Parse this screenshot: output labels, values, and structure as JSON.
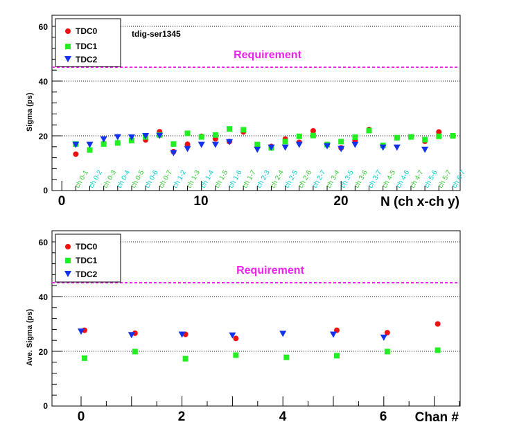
{
  "chart_data": [
    {
      "type": "scatter",
      "title": "",
      "xlabel": "N (ch x-ch y)",
      "ylabel": "Sigma (ps)",
      "xlim": [
        -0.5,
        28.5
      ],
      "ylim": [
        0,
        60
      ],
      "x_ticks": [
        0,
        10,
        20
      ],
      "y_ticks": [
        0,
        20,
        40,
        60
      ],
      "grid": "horizontal dotted at major y ticks",
      "legend_position": "top-left",
      "annotations": [
        "tdig-ser1345"
      ],
      "reference_line": {
        "label": "Requirement",
        "value": 45,
        "color": "#ee22ee"
      },
      "category_labels": [
        "ch 0-1",
        "ch 0-2",
        "ch 0-3",
        "ch 0-4",
        "ch 0-5",
        "ch 0-6",
        "ch 0-7",
        "ch 1-2",
        "ch 1-3",
        "ch 1-4",
        "ch 1-5",
        "ch 1-6",
        "ch 1-7",
        "ch 2-3",
        "ch 2-4",
        "ch 2-5",
        "ch 2-6",
        "ch 2-7",
        "ch 3-4",
        "ch 3-5",
        "ch 3-6",
        "ch 3-7",
        "ch 4-5",
        "ch 4-6",
        "ch 4-7",
        "ch 5-6",
        "ch 5-7",
        "ch 6-7"
      ],
      "category_label_colors": [
        "#33cc33",
        "#00cccc"
      ],
      "series": [
        {
          "name": "TDC0",
          "color": "#ee1111",
          "marker": "circle",
          "x": [
            1,
            2,
            3,
            4,
            5,
            6,
            7,
            8,
            9,
            10,
            11,
            12,
            13,
            14,
            15,
            16,
            17,
            18,
            19,
            20,
            21,
            22,
            23,
            24,
            25,
            26,
            27,
            28
          ],
          "y": [
            13.3,
            14.8,
            17.2,
            17.4,
            18.4,
            18.5,
            21.5,
            14.2,
            16.9,
            19.8,
            18.9,
            17.9,
            21.4,
            16.6,
            16.1,
            18.8,
            17.6,
            21.8,
            16.8,
            15.6,
            18.3,
            22.3,
            16.5,
            19.3,
            19.6,
            18.0,
            21.4,
            20.0
          ]
        },
        {
          "name": "TDC1",
          "color": "#22ee22",
          "marker": "square",
          "x": [
            1,
            2,
            3,
            4,
            5,
            6,
            7,
            8,
            9,
            10,
            11,
            12,
            13,
            14,
            15,
            16,
            17,
            18,
            19,
            20,
            21,
            22,
            23,
            24,
            25,
            26,
            27,
            28
          ],
          "y": [
            17.0,
            14.8,
            17.0,
            17.4,
            18.3,
            19.6,
            20.3,
            17.0,
            20.9,
            19.6,
            20.3,
            22.5,
            22.2,
            16.8,
            15.6,
            17.9,
            19.8,
            20.1,
            16.8,
            17.9,
            19.5,
            21.9,
            16.5,
            19.3,
            19.6,
            18.6,
            19.8,
            20.0
          ]
        },
        {
          "name": "TDC2",
          "color": "#1133ee",
          "marker": "triangle-down",
          "x": [
            1,
            2,
            3,
            4,
            5,
            6,
            7,
            8,
            9,
            10,
            11,
            12,
            13,
            14,
            15,
            16,
            17,
            18,
            19,
            20,
            21,
            22,
            23,
            24,
            25,
            26,
            27,
            28
          ],
          "y": [
            16.8,
            16.8,
            18.8,
            19.6,
            19.5,
            20.0,
            20.1,
            13.8,
            15.3,
            16.8,
            16.8,
            17.8,
            null,
            15.0,
            15.8,
            15.8,
            16.8,
            null,
            16.3,
            15.3,
            16.8,
            null,
            15.8,
            15.8,
            null,
            15.0,
            null,
            null
          ]
        }
      ]
    },
    {
      "type": "scatter",
      "title": "",
      "xlabel": "Chan #",
      "ylabel": "Ave. Sigma (ps)",
      "xlim": [
        -0.5,
        7.5
      ],
      "ylim": [
        0,
        60
      ],
      "x_ticks": [
        0,
        2,
        4,
        6
      ],
      "y_ticks": [
        0,
        20,
        40,
        60
      ],
      "grid": "horizontal dotted at major y ticks",
      "legend_position": "top-left",
      "reference_line": {
        "label": "Requirement",
        "value": 45,
        "color": "#ee22ee"
      },
      "series": [
        {
          "name": "TDC0",
          "color": "#ee1111",
          "marker": "circle",
          "x": [
            0,
            1,
            2,
            3,
            4,
            5,
            6,
            7
          ],
          "y": [
            27.7,
            26.6,
            26.2,
            24.7,
            null,
            27.7,
            26.8,
            30.0
          ]
        },
        {
          "name": "TDC1",
          "color": "#22ee22",
          "marker": "square",
          "x": [
            0,
            1,
            2,
            3,
            4,
            5,
            6,
            7
          ],
          "y": [
            17.5,
            19.9,
            17.3,
            18.6,
            17.8,
            18.4,
            19.9,
            20.4
          ]
        },
        {
          "name": "TDC2",
          "color": "#1133ee",
          "marker": "triangle-down",
          "x": [
            0,
            1,
            2,
            3,
            4,
            5,
            6,
            7
          ],
          "y": [
            27.3,
            26.0,
            26.2,
            25.9,
            26.5,
            26.2,
            25.1,
            null
          ]
        }
      ]
    }
  ]
}
